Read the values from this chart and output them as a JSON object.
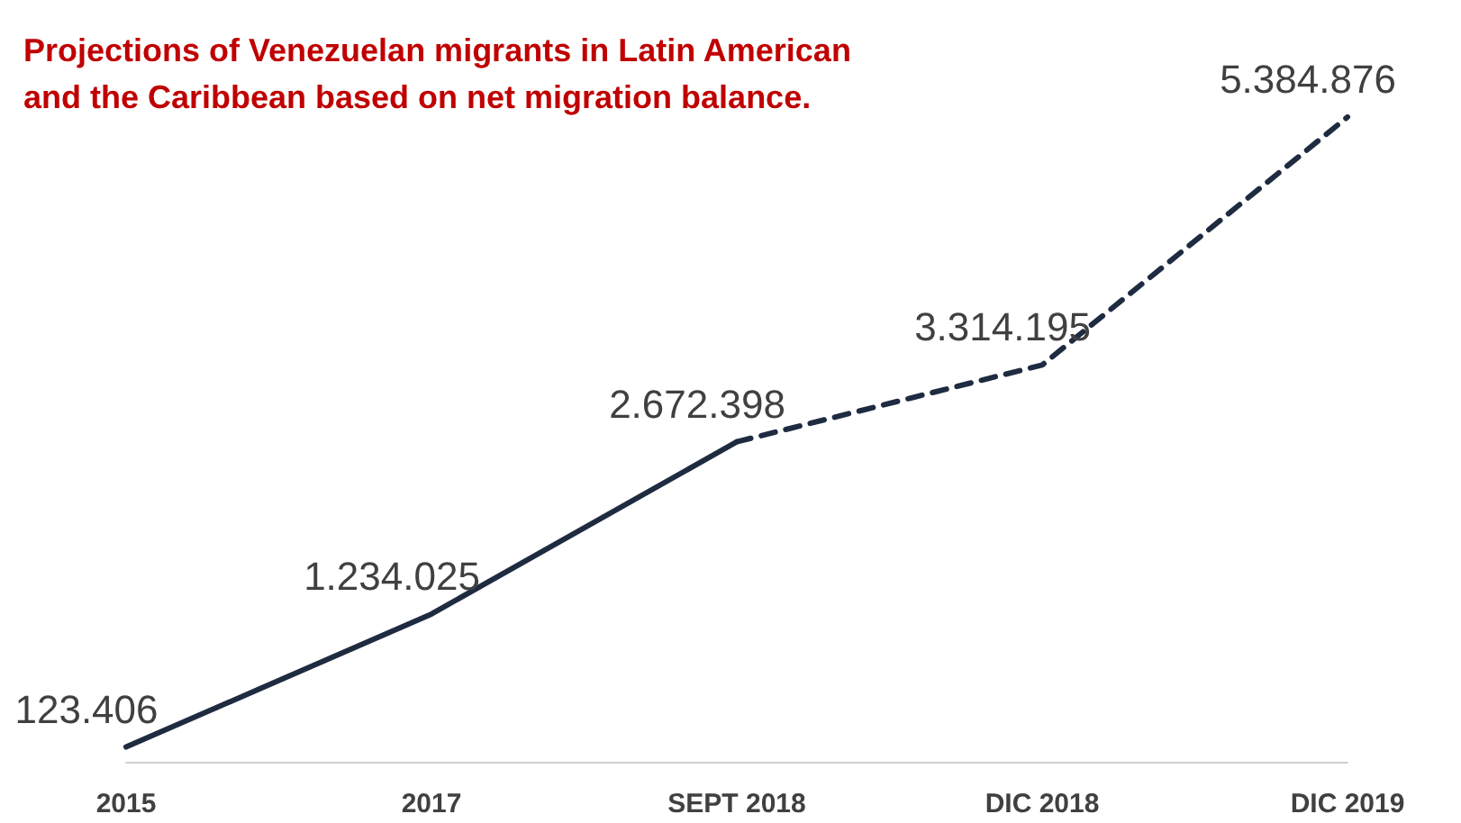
{
  "chart_data": {
    "type": "line",
    "title": "Projections of Venezuelan migrants in Latin American\nand the Caribbean based on net migration balance.",
    "categories": [
      "2015",
      "2017",
      "SEPT 2018",
      "DIC 2018",
      "DIC 2019"
    ],
    "series": [
      {
        "color": "#1e2b40",
        "line_style": "solid",
        "values": [
          123406,
          1234025,
          2672398,
          null,
          null
        ],
        "value_labels": [
          "123.406",
          "1.234.025",
          "2.672.398",
          null,
          null
        ]
      },
      {
        "color": "#1e2b40",
        "line_style": "dashed",
        "values": [
          null,
          null,
          2672398,
          3314195,
          5384876
        ],
        "value_labels": [
          null,
          null,
          null,
          "3.314.195",
          "5.384.876"
        ]
      }
    ],
    "marker": "none",
    "grid": false
  }
}
